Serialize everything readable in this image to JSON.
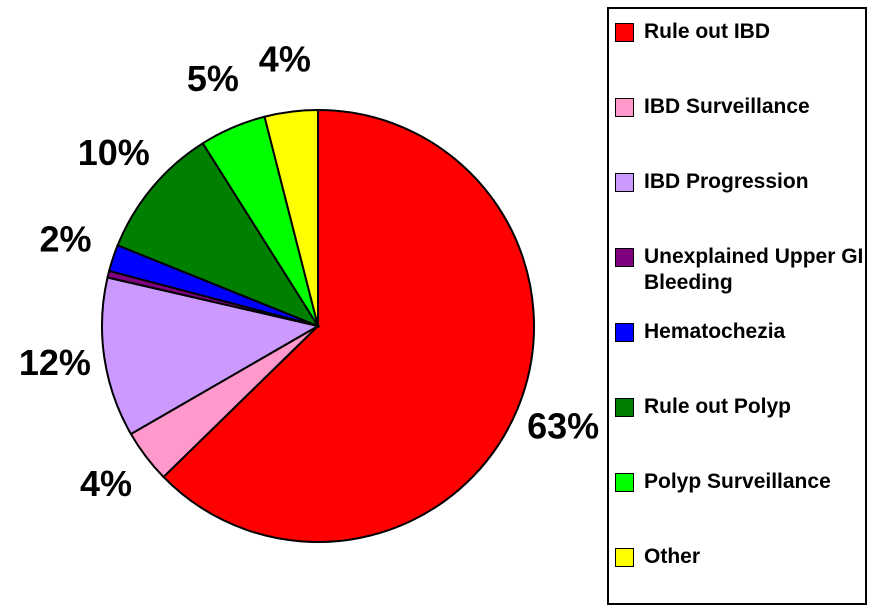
{
  "chart_data": {
    "type": "pie",
    "categories": [
      "Rule out IBD",
      "IBD Surveillance",
      "IBD Progression",
      "Unexplained Upper GI Bleeding",
      "Hematochezia",
      "Rule out Polyp",
      "Polyp Surveillance",
      "Other"
    ],
    "values": [
      63,
      4,
      12,
      0.5,
      2,
      10,
      5,
      4
    ],
    "value_labels": [
      "63%",
      "4%",
      "12%",
      null,
      "2%",
      "10%",
      "5%",
      "4%"
    ],
    "colors": [
      "#ff0000",
      "#ff99cc",
      "#cc99ff",
      "#800080",
      "#0000ff",
      "#008000",
      "#00ff00",
      "#ffff00"
    ],
    "legend": "right"
  }
}
